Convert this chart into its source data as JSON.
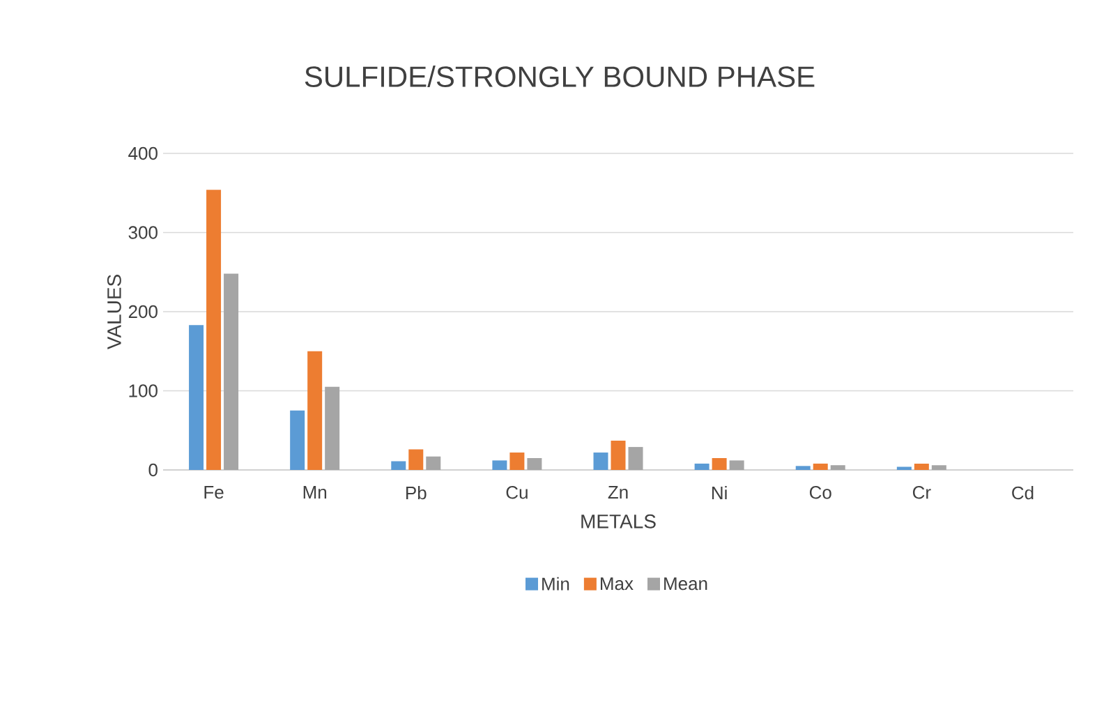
{
  "chart_data": {
    "type": "bar",
    "title": "SULFIDE/STRONGLY BOUND PHASE",
    "xlabel": "METALS",
    "ylabel": "VALUES",
    "categories": [
      "Fe",
      "Mn",
      "Pb",
      "Cu",
      "Zn",
      "Ni",
      "Co",
      "Cr",
      "Cd"
    ],
    "series": [
      {
        "name": "Min",
        "color": "#5b9bd5",
        "values": [
          183,
          75,
          11,
          12,
          22,
          8,
          5,
          4,
          0
        ]
      },
      {
        "name": "Max",
        "color": "#ed7d31",
        "values": [
          354,
          150,
          26,
          22,
          37,
          15,
          8,
          8,
          0
        ]
      },
      {
        "name": "Mean",
        "color": "#a5a5a5",
        "values": [
          248,
          105,
          17,
          15,
          29,
          12,
          6,
          6,
          0
        ]
      }
    ],
    "ylim": [
      0,
      400
    ],
    "yticks": [
      0,
      100,
      200,
      300,
      400
    ],
    "grid": "y",
    "legend": "bottom"
  }
}
